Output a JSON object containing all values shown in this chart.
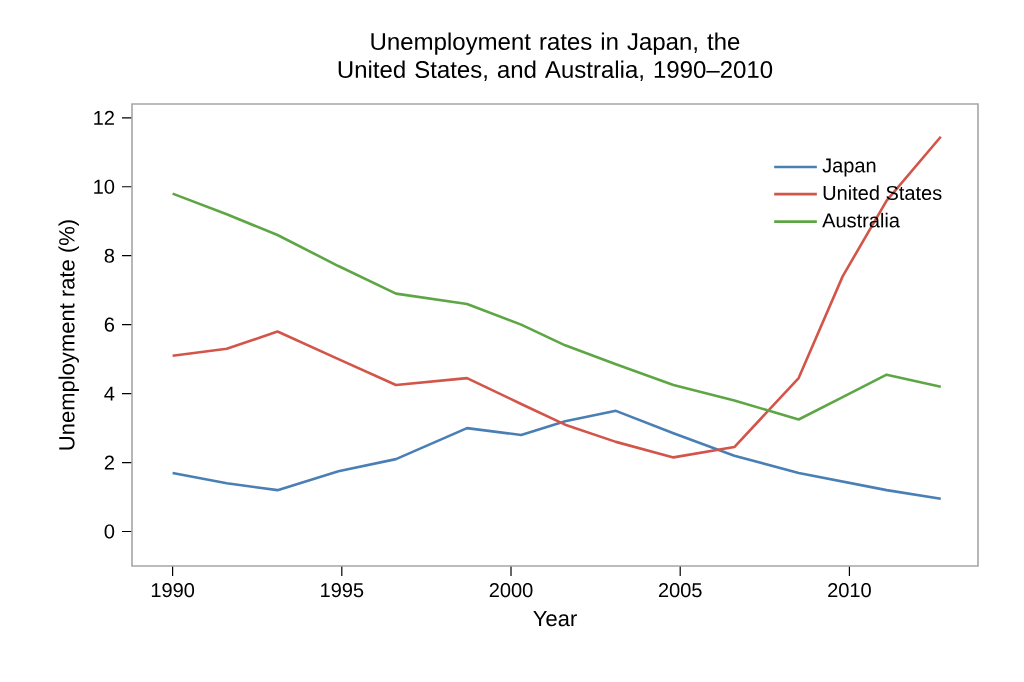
{
  "chart_data": {
    "type": "line",
    "title": "Unemployment rates in Japan, the United States, and Australia, 1990–2010",
    "xlabel": "Year",
    "ylabel": "Unemployment rate (%)",
    "x": [
      1990,
      1991.6,
      1993.1,
      1994.9,
      1996.6,
      1998.7,
      2000.3,
      2001.6,
      2003.1,
      2004.8,
      2006.6,
      2008.5,
      2009.8,
      2011.1,
      2012.7
    ],
    "series": [
      {
        "name": "Japan",
        "color": "#4a7fb5",
        "values": [
          1.7,
          1.4,
          1.2,
          1.75,
          2.1,
          3.0,
          2.8,
          3.2,
          3.5,
          2.85,
          2.2,
          1.7,
          1.45,
          1.2,
          0.95
        ]
      },
      {
        "name": "United States",
        "color": "#d3554a",
        "values": [
          5.1,
          5.3,
          5.8,
          5.0,
          4.25,
          4.45,
          3.7,
          3.1,
          2.6,
          2.15,
          2.45,
          4.45,
          7.4,
          9.6,
          11.45
        ]
      },
      {
        "name": "Australia",
        "color": "#5ea645",
        "values": [
          9.8,
          9.2,
          8.6,
          7.7,
          6.9,
          6.6,
          6.0,
          5.4,
          4.85,
          4.25,
          3.8,
          3.25,
          3.9,
          4.55,
          4.2
        ]
      }
    ],
    "xlim": [
      1988.8,
      2013.8
    ],
    "ylim": [
      -1,
      12.4
    ],
    "xticks": [
      1990,
      1995,
      2000,
      2005,
      2010
    ],
    "yticks": [
      0,
      2,
      4,
      6,
      8,
      10,
      12
    ],
    "grid": false,
    "legend": "top right",
    "marker": "none",
    "line_style": "solid"
  }
}
